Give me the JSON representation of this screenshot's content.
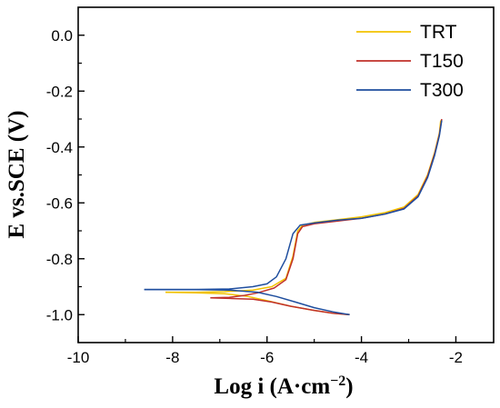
{
  "chart_data": {
    "type": "line",
    "xlabel": "Log i (A·cm",
    "xlabel_sup": "−2",
    "xlabel_end": ")",
    "ylabel": "E vs.SCE (V)",
    "xlim": [
      -10,
      -1.2
    ],
    "ylim": [
      -1.1,
      0.1
    ],
    "xticks": [
      -10,
      -8,
      -6,
      -4,
      -2
    ],
    "xtick_labels": [
      "-10",
      "-8",
      "-6",
      "-4",
      "-2"
    ],
    "yticks": [
      0.0,
      -0.2,
      -0.4,
      -0.6,
      -0.8,
      -1.0
    ],
    "ytick_labels": [
      "0.0",
      "-0.2",
      "-0.4",
      "-0.6",
      "-0.8",
      "-1.0"
    ],
    "legend_position": "top-right",
    "series": [
      {
        "name": "TRT",
        "color": "#f2c200",
        "cathodic": [
          [
            -4.25,
            -1.0
          ],
          [
            -4.6,
            -0.995
          ],
          [
            -5.0,
            -0.985
          ],
          [
            -5.5,
            -0.97
          ],
          [
            -6.0,
            -0.95
          ],
          [
            -6.4,
            -0.935
          ],
          [
            -6.9,
            -0.925
          ],
          [
            -7.5,
            -0.922
          ],
          [
            -8.15,
            -0.92
          ]
        ],
        "anodic": [
          [
            -8.15,
            -0.92
          ],
          [
            -7.5,
            -0.92
          ],
          [
            -6.9,
            -0.918
          ],
          [
            -6.3,
            -0.912
          ],
          [
            -5.9,
            -0.9
          ],
          [
            -5.6,
            -0.87
          ],
          [
            -5.45,
            -0.79
          ],
          [
            -5.35,
            -0.7
          ],
          [
            -5.25,
            -0.68
          ],
          [
            -5.0,
            -0.67
          ],
          [
            -4.5,
            -0.66
          ],
          [
            -4.0,
            -0.65
          ],
          [
            -3.5,
            -0.635
          ],
          [
            -3.1,
            -0.615
          ],
          [
            -2.8,
            -0.57
          ],
          [
            -2.6,
            -0.5
          ],
          [
            -2.45,
            -0.42
          ],
          [
            -2.35,
            -0.35
          ],
          [
            -2.32,
            -0.305
          ]
        ]
      },
      {
        "name": "T150",
        "color": "#c0302a",
        "cathodic": [
          [
            -4.25,
            -1.0
          ],
          [
            -4.6,
            -0.995
          ],
          [
            -5.0,
            -0.985
          ],
          [
            -5.5,
            -0.97
          ],
          [
            -5.9,
            -0.955
          ],
          [
            -6.3,
            -0.945
          ],
          [
            -6.8,
            -0.942
          ],
          [
            -7.2,
            -0.94
          ]
        ],
        "anodic": [
          [
            -7.2,
            -0.94
          ],
          [
            -6.8,
            -0.938
          ],
          [
            -6.5,
            -0.932
          ],
          [
            -6.2,
            -0.922
          ],
          [
            -5.85,
            -0.905
          ],
          [
            -5.6,
            -0.875
          ],
          [
            -5.45,
            -0.8
          ],
          [
            -5.35,
            -0.71
          ],
          [
            -5.25,
            -0.685
          ],
          [
            -5.0,
            -0.675
          ],
          [
            -4.5,
            -0.665
          ],
          [
            -4.0,
            -0.655
          ],
          [
            -3.5,
            -0.64
          ],
          [
            -3.1,
            -0.62
          ],
          [
            -2.8,
            -0.575
          ],
          [
            -2.6,
            -0.505
          ],
          [
            -2.45,
            -0.425
          ],
          [
            -2.35,
            -0.355
          ],
          [
            -2.3,
            -0.3
          ]
        ]
      },
      {
        "name": "T300",
        "color": "#1f4e9e",
        "cathodic": [
          [
            -4.25,
            -1.0
          ],
          [
            -4.6,
            -0.99
          ],
          [
            -5.0,
            -0.975
          ],
          [
            -5.4,
            -0.955
          ],
          [
            -5.8,
            -0.935
          ],
          [
            -6.2,
            -0.92
          ],
          [
            -6.8,
            -0.912
          ],
          [
            -7.6,
            -0.91
          ],
          [
            -8.6,
            -0.91
          ]
        ],
        "anodic": [
          [
            -8.6,
            -0.91
          ],
          [
            -7.6,
            -0.91
          ],
          [
            -6.8,
            -0.908
          ],
          [
            -6.3,
            -0.9
          ],
          [
            -6.0,
            -0.89
          ],
          [
            -5.8,
            -0.865
          ],
          [
            -5.6,
            -0.8
          ],
          [
            -5.45,
            -0.71
          ],
          [
            -5.3,
            -0.68
          ],
          [
            -5.0,
            -0.672
          ],
          [
            -4.5,
            -0.662
          ],
          [
            -4.0,
            -0.655
          ],
          [
            -3.5,
            -0.64
          ],
          [
            -3.1,
            -0.622
          ],
          [
            -2.8,
            -0.578
          ],
          [
            -2.6,
            -0.51
          ],
          [
            -2.45,
            -0.43
          ],
          [
            -2.35,
            -0.36
          ],
          [
            -2.3,
            -0.305
          ]
        ]
      }
    ]
  }
}
